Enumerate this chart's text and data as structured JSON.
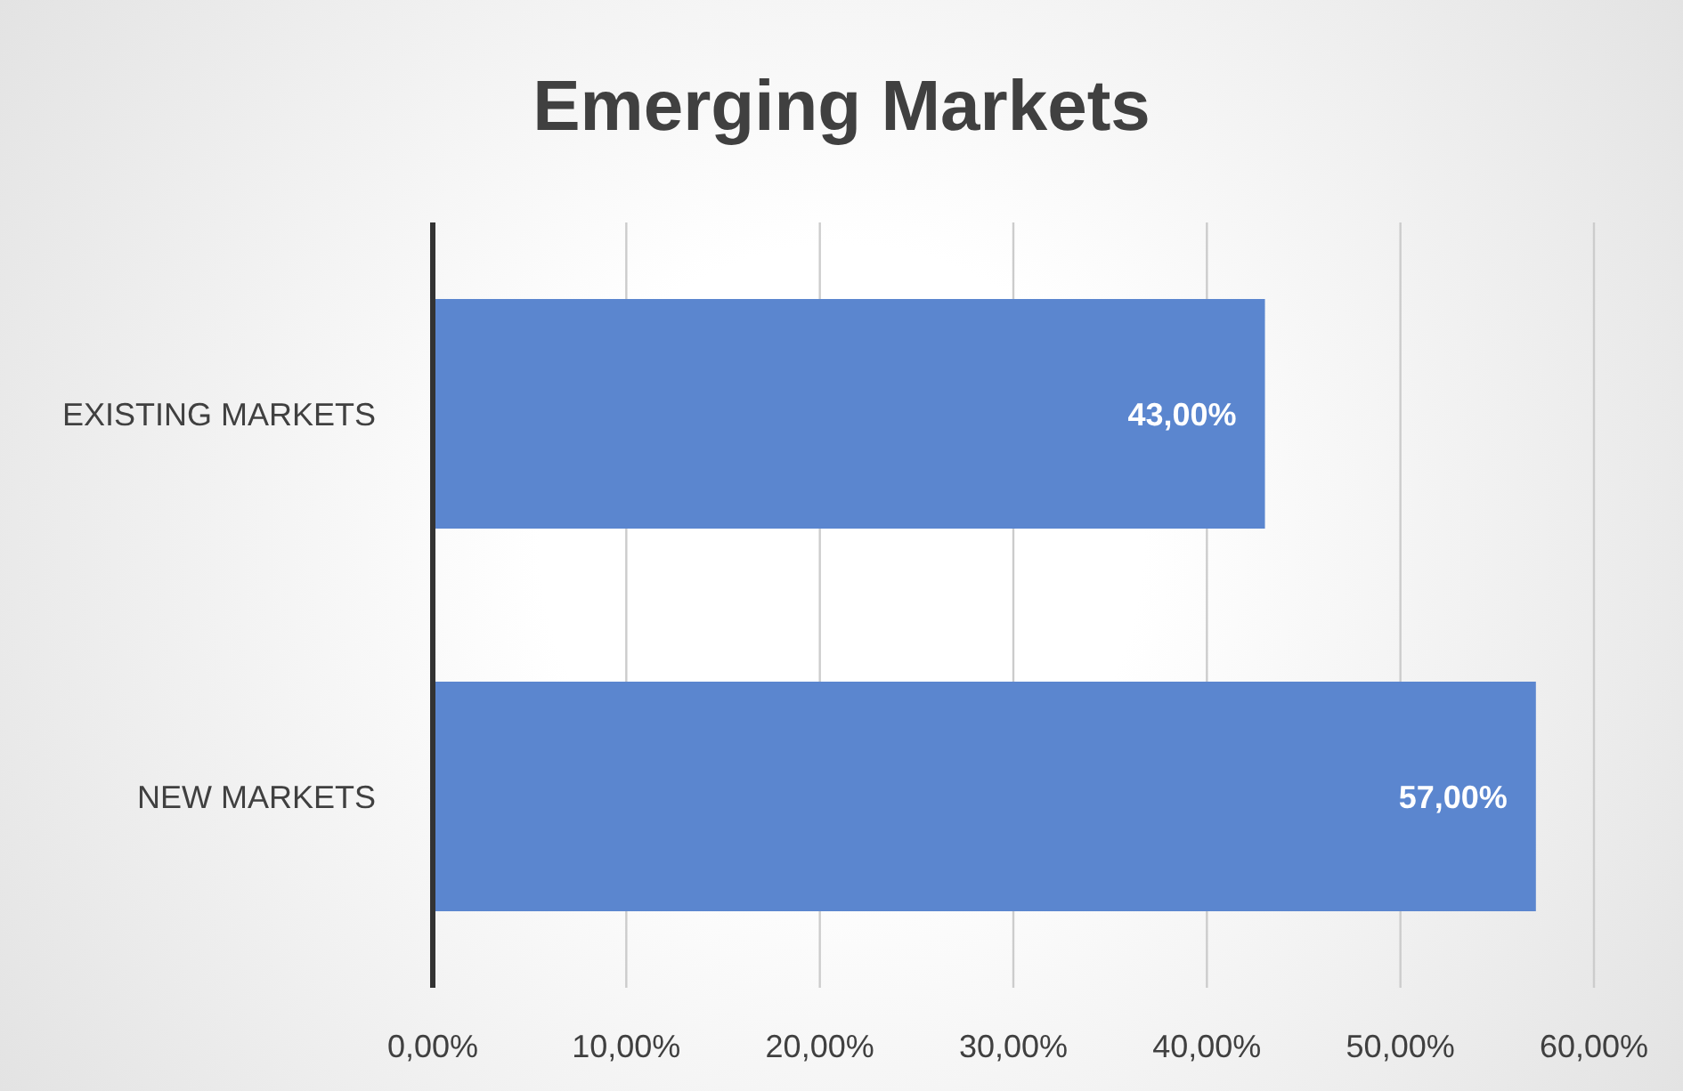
{
  "chart_data": {
    "type": "bar",
    "orientation": "horizontal",
    "title": "Emerging Markets",
    "categories": [
      "EXISTING MARKETS",
      "NEW MARKETS"
    ],
    "values": [
      43,
      57
    ],
    "color": "#5b86cf",
    "value_labels": [
      "43,00%",
      "57,00%"
    ],
    "xlim": [
      0,
      60
    ],
    "xticks": [
      {
        "value": 0,
        "label": "0,00%"
      },
      {
        "value": 10,
        "label": "10,00%"
      },
      {
        "value": 20,
        "label": "20,00%"
      },
      {
        "value": 30,
        "label": "30,00%"
      },
      {
        "value": 40,
        "label": "40,00%"
      },
      {
        "value": 50,
        "label": "50,00%"
      },
      {
        "value": 60,
        "label": "60,00%"
      }
    ],
    "grid": "x"
  }
}
